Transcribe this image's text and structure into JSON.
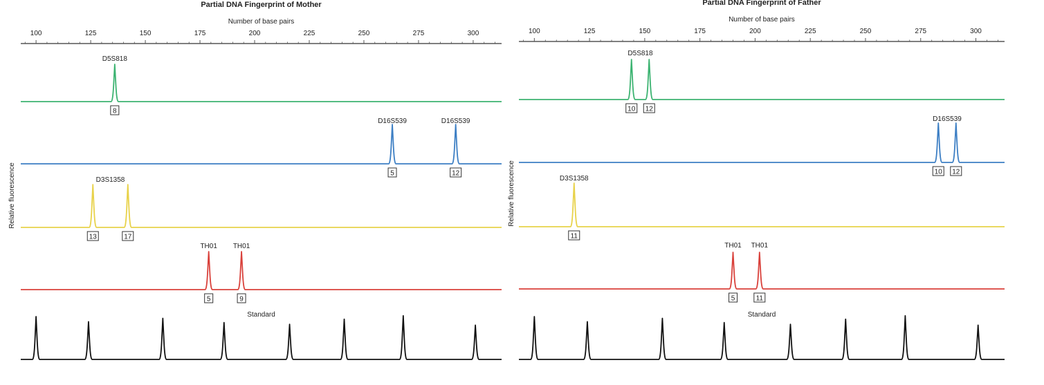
{
  "chart_data": [
    {
      "type": "line",
      "title": "Partial DNA Fingerprint of Mother",
      "xlabel": "Number of base pairs",
      "ylabel": "Relative fluorescence",
      "x_ticks": [
        100,
        125,
        150,
        175,
        200,
        225,
        250,
        275,
        300
      ],
      "xlim": [
        93,
        313
      ],
      "colors": {
        "green": "#3cb371",
        "blue": "#3d7fc4",
        "yellow": "#e8d24a",
        "red": "#d9413b",
        "black": "#111111",
        "axis": "#555555"
      },
      "series": [
        {
          "color_key": "green",
          "markers": [
            {
              "name": "D5S818",
              "peaks": [
                {
                  "x": 136,
                  "allele": "8"
                }
              ]
            }
          ]
        },
        {
          "color_key": "blue",
          "markers": [
            {
              "name": "D16S539",
              "peaks": [
                {
                  "x": 263,
                  "allele": "5"
                }
              ]
            },
            {
              "name": "D16S539",
              "peaks": [
                {
                  "x": 292,
                  "allele": "12"
                }
              ]
            }
          ]
        },
        {
          "color_key": "yellow",
          "markers": [
            {
              "name": "D3S1358",
              "peaks": [
                {
                  "x": 126,
                  "allele": "13"
                },
                {
                  "x": 142,
                  "allele": "17"
                }
              ]
            }
          ]
        },
        {
          "color_key": "red",
          "markers": [
            {
              "name": "TH01",
              "peaks": [
                {
                  "x": 179,
                  "allele": "5"
                }
              ]
            },
            {
              "name": "TH01",
              "peaks": [
                {
                  "x": 194,
                  "allele": "9"
                }
              ]
            }
          ]
        }
      ],
      "standard": {
        "label": "Standard",
        "peaks": [
          100,
          124,
          158,
          186,
          216,
          241,
          268,
          301
        ],
        "heights": [
          1.0,
          0.88,
          0.96,
          0.86,
          0.82,
          0.94,
          1.02,
          0.8
        ]
      }
    },
    {
      "type": "line",
      "title": "Partial DNA Fingerprint of Father",
      "xlabel": "Number of base pairs",
      "ylabel": "Relative fluorescence",
      "x_ticks": [
        100,
        125,
        150,
        175,
        200,
        225,
        250,
        275,
        300
      ],
      "xlim": [
        93,
        313
      ],
      "colors": {
        "green": "#3cb371",
        "blue": "#3d7fc4",
        "yellow": "#e8d24a",
        "red": "#d9413b",
        "black": "#111111",
        "axis": "#555555"
      },
      "series": [
        {
          "color_key": "green",
          "markers": [
            {
              "name": "D5S818",
              "peaks": [
                {
                  "x": 144,
                  "allele": "10"
                },
                {
                  "x": 152,
                  "allele": "12"
                }
              ]
            }
          ]
        },
        {
          "color_key": "blue",
          "markers": [
            {
              "name": "D16S539",
              "peaks": [
                {
                  "x": 283,
                  "allele": "10"
                },
                {
                  "x": 291,
                  "allele": "12"
                }
              ]
            }
          ]
        },
        {
          "color_key": "yellow",
          "markers": [
            {
              "name": "D3S1358",
              "peaks": [
                {
                  "x": 118,
                  "allele": "11"
                }
              ]
            }
          ]
        },
        {
          "color_key": "red",
          "markers": [
            {
              "name": "TH01",
              "peaks": [
                {
                  "x": 190,
                  "allele": "5"
                }
              ]
            },
            {
              "name": "TH01",
              "peaks": [
                {
                  "x": 202,
                  "allele": "11"
                }
              ]
            }
          ]
        }
      ],
      "standard": {
        "label": "Standard",
        "peaks": [
          100,
          124,
          158,
          186,
          216,
          241,
          268,
          301
        ],
        "heights": [
          1.0,
          0.88,
          0.96,
          0.86,
          0.82,
          0.94,
          1.02,
          0.8
        ]
      }
    }
  ]
}
